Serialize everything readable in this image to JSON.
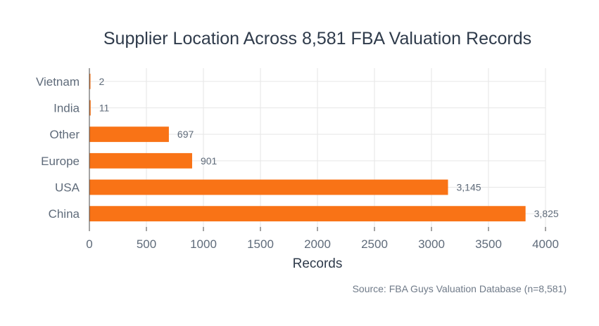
{
  "chart_data": {
    "type": "bar",
    "orientation": "horizontal",
    "title": "Supplier Location Across 8,581 FBA Valuation Records",
    "xlabel": "Records",
    "ylabel": "",
    "categories": [
      "China",
      "USA",
      "Europe",
      "Other",
      "India",
      "Vietnam"
    ],
    "values": [
      3825,
      3145,
      901,
      697,
      11,
      2
    ],
    "value_labels": [
      "3,825",
      "3,145",
      "901",
      "697",
      "11",
      "2"
    ],
    "xlim": [
      0,
      4000
    ],
    "xticks": [
      0,
      500,
      1000,
      1500,
      2000,
      2500,
      3000,
      3500,
      4000
    ],
    "xtick_labels": [
      "0",
      "500",
      "1000",
      "1500",
      "2000",
      "2500",
      "3000",
      "3500",
      "4000"
    ],
    "grid": true,
    "bar_color": "#f97316",
    "source": "Source: FBA Guys Valuation Database (n=8,581)"
  }
}
